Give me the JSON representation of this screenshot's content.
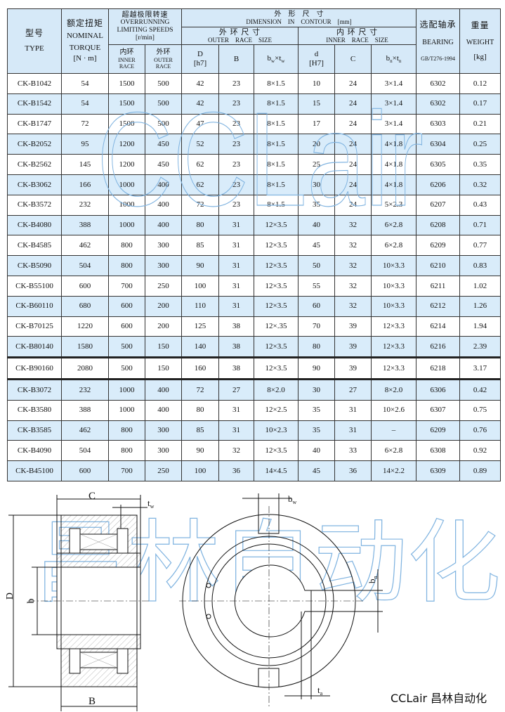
{
  "header": {
    "type_zh": "型号",
    "type_en": "TYPE",
    "torque_zh": "额定扭矩",
    "torque_en1": "NOMINAL",
    "torque_en2": "TORQUE",
    "torque_unit": "[N · m]",
    "speed_zh": "超越极限转速",
    "speed_en1": "OVERRUNNING",
    "speed_en2": "LIMITING SPEEDS",
    "speed_unit": "[r/min]",
    "inner_zh": "内环",
    "inner_en1": "INNER",
    "inner_en2": "RACE",
    "outer_zh": "外环",
    "outer_en1": "OUTER",
    "outer_en2": "RACE",
    "dim_zh": "外　形　尺　寸",
    "dim_en": "DIMENSION　IN　CONTOUR　[mm]",
    "outer_size_zh": "外 环 尺 寸",
    "outer_size_en": "OUTER　RACE　SIZE",
    "inner_size_zh": "内 环 尺 寸",
    "inner_size_en": "INNER　RACE　SIZE",
    "D": "D",
    "D_tol": "[h7]",
    "B": "B",
    "bw": "b",
    "bw_sub": "w",
    "times": "×",
    "tw": "t",
    "tw_sub": "w",
    "d": "d",
    "d_tol": "[H7]",
    "C": "C",
    "bn": "b",
    "bn_sub": "n",
    "tn": "t",
    "tn_sub": "n",
    "bearing_zh": "选配轴承",
    "bearing_en": "BEARING",
    "bearing_std": "GB/T276-1994",
    "weight_zh": "重量",
    "weight_en": "WEIGHT",
    "weight_unit": "[kg]"
  },
  "table": {
    "rows": [
      [
        "CK-B1042",
        "54",
        "1500",
        "500",
        "42",
        "23",
        "8×1.5",
        "10",
        "24",
        "3×1.4",
        "6302",
        "0.12"
      ],
      [
        "CK-B1542",
        "54",
        "1500",
        "500",
        "42",
        "23",
        "8×1.5",
        "15",
        "24",
        "3×1.4",
        "6302",
        "0.17"
      ],
      [
        "CK-B1747",
        "72",
        "1500",
        "500",
        "47",
        "23",
        "8×1.5",
        "17",
        "24",
        "3×1.4",
        "6303",
        "0.21"
      ],
      [
        "CK-B2052",
        "95",
        "1200",
        "450",
        "52",
        "23",
        "8×1.5",
        "20",
        "24",
        "4×1.8",
        "6304",
        "0.25"
      ],
      [
        "CK-B2562",
        "145",
        "1200",
        "450",
        "62",
        "23",
        "8×1.5",
        "25",
        "24",
        "4×1.8",
        "6305",
        "0.35"
      ],
      [
        "CK-B3062",
        "166",
        "1000",
        "400",
        "62",
        "23",
        "8×1.5",
        "30",
        "24",
        "4×1.8",
        "6206",
        "0.32"
      ],
      [
        "CK-B3572",
        "232",
        "1000",
        "400",
        "72",
        "23",
        "8×1.5",
        "35",
        "24",
        "5×2.3",
        "6207",
        "0.43"
      ],
      [
        "CK-B4080",
        "388",
        "1000",
        "400",
        "80",
        "31",
        "12×3.5",
        "40",
        "32",
        "6×2.8",
        "6208",
        "0.71"
      ],
      [
        "CK-B4585",
        "462",
        "800",
        "300",
        "85",
        "31",
        "12×3.5",
        "45",
        "32",
        "6×2.8",
        "6209",
        "0.77"
      ],
      [
        "CK-B5090",
        "504",
        "800",
        "300",
        "90",
        "31",
        "12×3.5",
        "50",
        "32",
        "10×3.3",
        "6210",
        "0.83"
      ],
      [
        "CK-B55100",
        "600",
        "700",
        "250",
        "100",
        "31",
        "12×3.5",
        "55",
        "32",
        "10×3.3",
        "6211",
        "1.02"
      ],
      [
        "CK-B60110",
        "680",
        "600",
        "200",
        "110",
        "31",
        "12×3.5",
        "60",
        "32",
        "10×3.3",
        "6212",
        "1.26"
      ],
      [
        "CK-B70125",
        "1220",
        "600",
        "200",
        "125",
        "38",
        "12×.35",
        "70",
        "39",
        "12×3.3",
        "6214",
        "1.94"
      ],
      [
        "CK-B80140",
        "1580",
        "500",
        "150",
        "140",
        "38",
        "12×3.5",
        "80",
        "39",
        "12×3.3",
        "6216",
        "2.39"
      ],
      [
        "CK-B90160",
        "2080",
        "500",
        "150",
        "160",
        "38",
        "12×3.5",
        "90",
        "39",
        "12×3.3",
        "6218",
        "3.17"
      ],
      [
        "CK-B3072",
        "232",
        "1000",
        "400",
        "72",
        "27",
        "8×2.0",
        "30",
        "27",
        "8×2.0",
        "6306",
        "0.42"
      ],
      [
        "CK-B3580",
        "388",
        "1000",
        "400",
        "80",
        "31",
        "12×2.5",
        "35",
        "31",
        "10×2.6",
        "6307",
        "0.75"
      ],
      [
        "CK-B3585",
        "462",
        "800",
        "300",
        "85",
        "31",
        "10×2.3",
        "35",
        "31",
        "–",
        "6209",
        "0.76"
      ],
      [
        "CK-B4090",
        "504",
        "800",
        "300",
        "90",
        "32",
        "12×3.5",
        "40",
        "33",
        "6×2.8",
        "6308",
        "0.92"
      ],
      [
        "CK-B45100",
        "600",
        "700",
        "250",
        "100",
        "36",
        "14×4.5",
        "45",
        "36",
        "14×2.2",
        "6309",
        "0.89"
      ]
    ]
  },
  "drawing": {
    "label_C": "C",
    "label_tw": "t",
    "label_tw_sub": "w",
    "label_D": "D",
    "label_b": "b",
    "label_B": "B",
    "label_bw": "b",
    "label_bw_sub": "w",
    "label_bn": "b",
    "label_bn_sub": "n",
    "label_ta": "t",
    "label_ta_sub": "a"
  },
  "watermark": {
    "table_text": "CCLair",
    "drawing_text": "昌林自动化"
  },
  "caption": "CCLair 昌林自动化",
  "colors": {
    "header_bg": "#d6e9f8",
    "alt_row_bg": "#d9ecfa",
    "watermark": "#7fb3e0"
  }
}
